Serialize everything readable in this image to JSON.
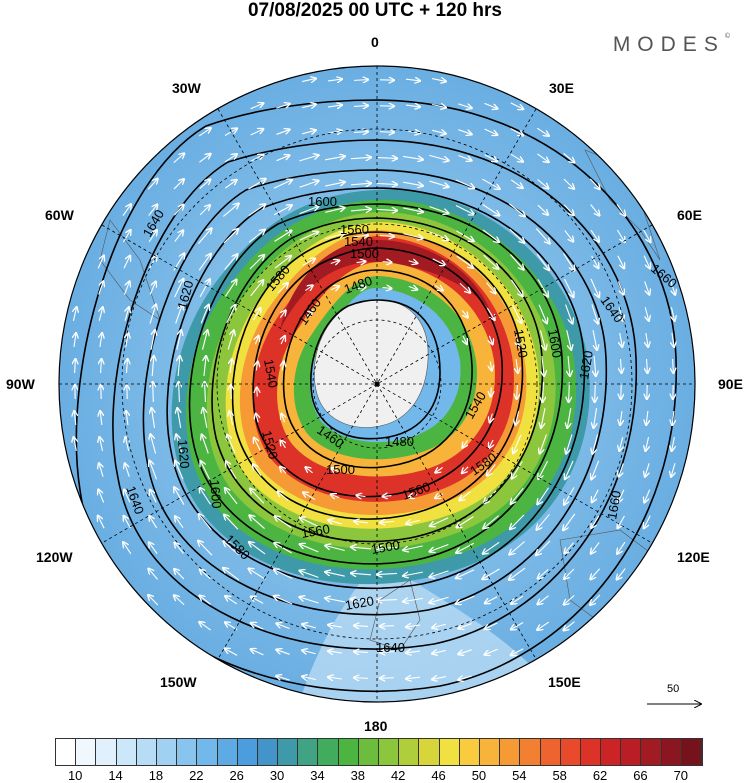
{
  "header": {
    "title": "07/08/2025  00 UTC  + 120 hrs",
    "brand": "MODES"
  },
  "map": {
    "projection": "south-polar-stereographic",
    "longitude_labels": {
      "top": "0",
      "bottom": "180",
      "upper_left": "30W",
      "upper_right": "30E",
      "left_upper": "60W",
      "right_upper": "60E",
      "left": "90W",
      "right": "90E",
      "left_lower": "120W",
      "right_lower": "120E",
      "lower_left": "150W",
      "lower_right": "150E"
    },
    "contour_labels": [
      "1460",
      "1460",
      "1480",
      "1480",
      "1500",
      "1500",
      "1500",
      "1520",
      "1520",
      "1540",
      "1540",
      "1540",
      "1560",
      "1560",
      "1560",
      "1580",
      "1580",
      "1580",
      "1600",
      "1600",
      "1600",
      "1620",
      "1620",
      "1620",
      "1620",
      "1640",
      "1640",
      "1640",
      "1640",
      "1660",
      "1660"
    ],
    "vector_reference": "50",
    "colors": {
      "land": "#e8e8e8",
      "contour": "#000000",
      "arrow": "#ffffff"
    }
  },
  "colorbar": {
    "labels": [
      "10",
      "14",
      "18",
      "22",
      "26",
      "30",
      "34",
      "38",
      "42",
      "46",
      "50",
      "54",
      "58",
      "62",
      "66",
      "70"
    ],
    "colors": [
      "#ffffff",
      "#f0f8ff",
      "#e0f0fc",
      "#cce6fa",
      "#b7dcf6",
      "#a0d0f2",
      "#88c4ee",
      "#72b8ea",
      "#5eaae4",
      "#4c9ddd",
      "#4294c9",
      "#3e9aa8",
      "#3fa384",
      "#41ac5e",
      "#4cb542",
      "#6cbd3e",
      "#8cc63c",
      "#b0ce3a",
      "#d6d63a",
      "#f0e040",
      "#f8cc3e",
      "#f8b43a",
      "#f69a36",
      "#f28032",
      "#ee642e",
      "#e84a2a",
      "#dc3228",
      "#cc2426",
      "#b81e24",
      "#a21a22",
      "#8c1620",
      "#76121c"
    ]
  }
}
